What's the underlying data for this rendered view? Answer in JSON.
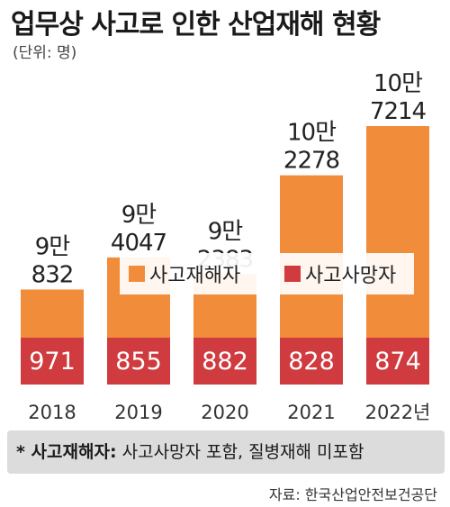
{
  "title": "업무상 사고로 인한 산업재해 현황",
  "unit": "(단위: 명)",
  "note": {
    "prefix": "* 사고재해자:",
    "text": "사고사망자 포함, 질병재해 미포함"
  },
  "source": "자료: 한국산업안전보건공단",
  "colors": {
    "injuries": "#f08c3a",
    "deaths": "#cf3b3f",
    "note_bg": "#dcdcdc"
  },
  "chart_data": {
    "type": "bar",
    "stacked": true,
    "categories": [
      "2018",
      "2019",
      "2020",
      "2021",
      "2022년"
    ],
    "series": [
      {
        "name": "사고재해자",
        "values": [
          90832,
          94047,
          92383,
          102278,
          107214
        ],
        "labels": [
          [
            "9만",
            "832"
          ],
          [
            "9만",
            "4047"
          ],
          [
            "9만",
            "2383"
          ],
          [
            "10만",
            "2278"
          ],
          [
            "10만",
            "7214"
          ]
        ]
      },
      {
        "name": "사고사망자",
        "values": [
          971,
          855,
          882,
          828,
          874
        ],
        "labels": [
          "971",
          "855",
          "882",
          "828",
          "874"
        ]
      }
    ],
    "legend": "center"
  }
}
